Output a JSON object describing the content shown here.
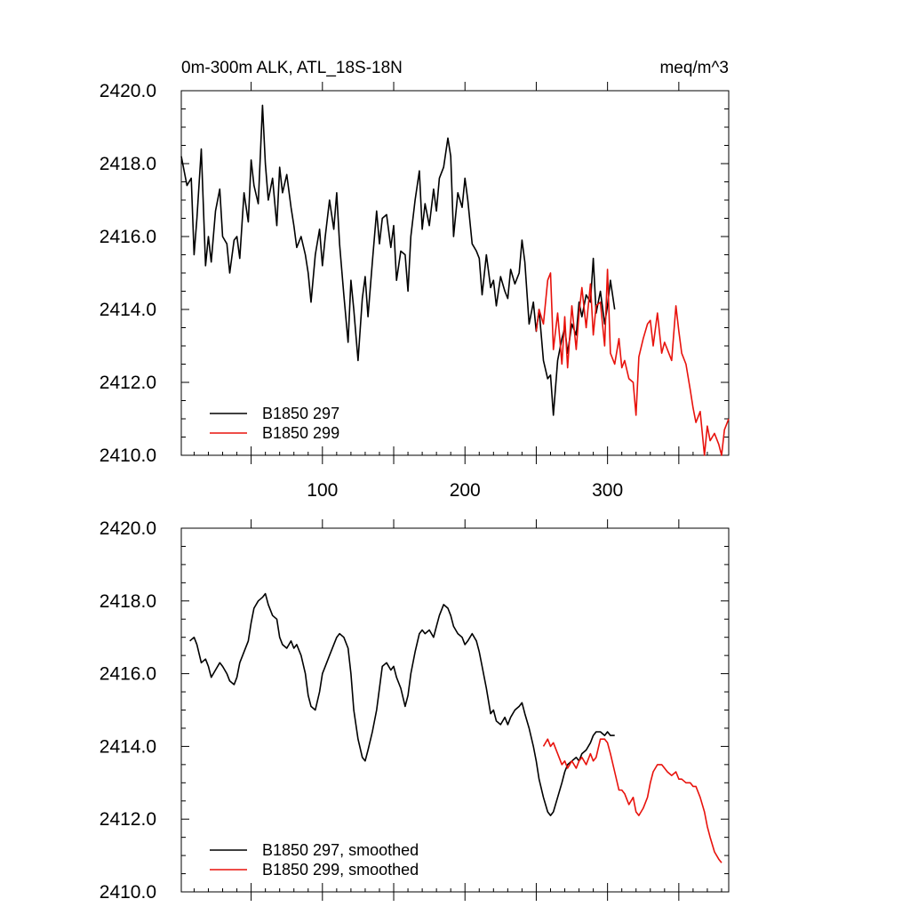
{
  "chart_data": [
    {
      "type": "line",
      "title": "0m-300m ALK, ATL_18S-18N",
      "units": "meq/m^3",
      "xlim": [
        1,
        385
      ],
      "ylim": [
        2410,
        2420
      ],
      "y_ticks": [
        "2410.0",
        "2412.0",
        "2414.0",
        "2416.0",
        "2418.0",
        "2420.0"
      ],
      "x_ticks": [
        "100",
        "200",
        "300"
      ],
      "legend_position": "bottom-left",
      "grid": false,
      "series": [
        {
          "name": "B1850 297",
          "color": "#000000",
          "x": [
            1,
            5,
            8,
            10,
            12,
            15,
            18,
            20,
            22,
            25,
            28,
            30,
            33,
            35,
            38,
            40,
            42,
            45,
            48,
            50,
            52,
            55,
            58,
            60,
            62,
            65,
            68,
            70,
            72,
            75,
            78,
            80,
            82,
            85,
            88,
            90,
            92,
            95,
            98,
            100,
            102,
            105,
            108,
            110,
            112,
            115,
            118,
            120,
            122,
            125,
            128,
            130,
            132,
            135,
            138,
            140,
            142,
            145,
            148,
            150,
            152,
            155,
            158,
            160,
            162,
            165,
            168,
            170,
            172,
            175,
            178,
            180,
            182,
            185,
            188,
            190,
            192,
            195,
            198,
            200,
            202,
            205,
            208,
            210,
            212,
            215,
            218,
            220,
            222,
            225,
            228,
            230,
            232,
            235,
            238,
            240,
            242,
            245,
            248,
            250,
            252,
            255,
            258,
            260,
            262,
            265,
            268,
            270,
            272,
            275,
            278,
            280,
            282,
            285,
            288,
            290,
            292,
            295,
            298,
            300,
            302,
            305
          ],
          "y": [
            2418.2,
            2417.4,
            2417.6,
            2415.5,
            2416.5,
            2418.4,
            2415.2,
            2416.0,
            2415.3,
            2416.7,
            2417.3,
            2416.0,
            2415.8,
            2415.0,
            2415.9,
            2416.0,
            2415.4,
            2417.2,
            2416.4,
            2418.1,
            2417.4,
            2416.9,
            2419.6,
            2418.0,
            2417.0,
            2417.6,
            2416.3,
            2417.9,
            2417.2,
            2417.7,
            2416.8,
            2416.3,
            2415.7,
            2416.0,
            2415.5,
            2415.0,
            2414.2,
            2415.5,
            2416.2,
            2415.2,
            2416.0,
            2417.0,
            2416.2,
            2417.2,
            2415.8,
            2414.4,
            2413.1,
            2414.8,
            2414.0,
            2412.6,
            2414.3,
            2414.9,
            2413.8,
            2415.3,
            2416.7,
            2415.8,
            2416.5,
            2416.6,
            2415.7,
            2416.3,
            2414.8,
            2415.6,
            2415.5,
            2414.5,
            2416.0,
            2417.0,
            2417.8,
            2416.2,
            2416.9,
            2416.3,
            2417.3,
            2416.7,
            2417.6,
            2417.9,
            2418.7,
            2418.2,
            2416.0,
            2417.2,
            2416.8,
            2417.6,
            2417.0,
            2415.8,
            2415.6,
            2415.4,
            2414.4,
            2415.5,
            2414.6,
            2414.8,
            2414.1,
            2414.9,
            2414.5,
            2414.3,
            2415.1,
            2414.7,
            2415.0,
            2415.9,
            2415.3,
            2413.6,
            2414.2,
            2413.4,
            2414.0,
            2412.6,
            2412.1,
            2412.2,
            2411.1,
            2412.6,
            2413.2,
            2413.5,
            2412.8,
            2413.6,
            2413.3,
            2414.2,
            2413.8,
            2414.4,
            2414.2,
            2415.4,
            2413.9,
            2414.5,
            2413.6,
            2414.1,
            2414.8,
            2414.0
          ]
        },
        {
          "name": "B1850 299",
          "color": "#e8120c",
          "x": [
            250,
            252,
            255,
            258,
            260,
            262,
            265,
            268,
            270,
            272,
            275,
            278,
            280,
            282,
            285,
            288,
            290,
            292,
            295,
            298,
            300,
            302,
            305,
            308,
            310,
            312,
            315,
            318,
            320,
            322,
            325,
            328,
            330,
            332,
            335,
            338,
            340,
            342,
            345,
            348,
            350,
            352,
            355,
            358,
            360,
            362,
            365,
            368,
            370,
            372,
            375,
            378,
            380,
            382,
            385
          ],
          "y": [
            2413.4,
            2414.0,
            2413.6,
            2414.8,
            2415.0,
            2412.9,
            2413.9,
            2412.5,
            2413.8,
            2412.4,
            2414.1,
            2412.9,
            2413.9,
            2414.6,
            2413.5,
            2414.7,
            2413.3,
            2414.1,
            2414.2,
            2413.0,
            2415.1,
            2412.8,
            2412.5,
            2413.2,
            2412.4,
            2412.6,
            2412.1,
            2412.0,
            2411.1,
            2412.7,
            2413.2,
            2413.6,
            2413.7,
            2413.0,
            2413.9,
            2412.8,
            2413.1,
            2412.9,
            2412.6,
            2414.1,
            2413.4,
            2412.8,
            2412.5,
            2411.8,
            2411.3,
            2410.9,
            2411.2,
            2410.0,
            2410.8,
            2410.4,
            2410.6,
            2410.3,
            2410.0,
            2410.7,
            2411.0
          ]
        }
      ]
    },
    {
      "type": "line",
      "title": "",
      "xlim": [
        1,
        385
      ],
      "ylim": [
        2410,
        2420
      ],
      "y_ticks": [
        "2410.0",
        "2412.0",
        "2414.0",
        "2416.0",
        "2418.0",
        "2420.0"
      ],
      "legend_position": "bottom-left",
      "grid": false,
      "series": [
        {
          "name": "B1850 297, smoothed",
          "color": "#000000",
          "x": [
            7,
            10,
            12,
            15,
            18,
            20,
            22,
            25,
            28,
            30,
            33,
            35,
            38,
            40,
            42,
            45,
            48,
            50,
            52,
            55,
            58,
            60,
            62,
            65,
            68,
            70,
            72,
            75,
            78,
            80,
            82,
            85,
            88,
            90,
            92,
            95,
            98,
            100,
            102,
            105,
            108,
            110,
            112,
            115,
            118,
            120,
            122,
            125,
            128,
            130,
            132,
            135,
            138,
            140,
            142,
            145,
            148,
            150,
            152,
            155,
            158,
            160,
            162,
            165,
            168,
            170,
            172,
            175,
            178,
            180,
            182,
            185,
            188,
            190,
            192,
            195,
            198,
            200,
            202,
            205,
            208,
            210,
            212,
            215,
            218,
            220,
            222,
            225,
            228,
            230,
            232,
            235,
            238,
            240,
            242,
            245,
            248,
            250,
            252,
            255,
            258,
            260,
            262,
            265,
            268,
            270,
            272,
            275,
            278,
            280,
            282,
            285,
            288,
            290,
            292,
            295,
            298,
            300,
            302,
            305
          ],
          "y": [
            2416.9,
            2417.0,
            2416.8,
            2416.3,
            2416.4,
            2416.2,
            2415.9,
            2416.1,
            2416.3,
            2416.2,
            2416.0,
            2415.8,
            2415.7,
            2415.9,
            2416.3,
            2416.6,
            2416.9,
            2417.4,
            2417.8,
            2418.0,
            2418.1,
            2418.2,
            2417.9,
            2417.6,
            2417.5,
            2417.0,
            2416.8,
            2416.7,
            2416.9,
            2416.7,
            2416.8,
            2416.5,
            2416.0,
            2415.4,
            2415.1,
            2415.0,
            2415.5,
            2416.0,
            2416.2,
            2416.5,
            2416.8,
            2417.0,
            2417.1,
            2417.0,
            2416.7,
            2416.0,
            2415.0,
            2414.2,
            2413.7,
            2413.6,
            2413.9,
            2414.4,
            2415.0,
            2415.6,
            2416.2,
            2416.3,
            2416.1,
            2416.2,
            2415.9,
            2415.6,
            2415.1,
            2415.4,
            2416.0,
            2416.6,
            2417.1,
            2417.2,
            2417.1,
            2417.2,
            2417.0,
            2417.3,
            2417.6,
            2417.9,
            2417.8,
            2417.6,
            2417.3,
            2417.1,
            2417.0,
            2416.8,
            2416.9,
            2417.1,
            2416.9,
            2416.6,
            2416.2,
            2415.6,
            2414.9,
            2415.0,
            2414.7,
            2414.6,
            2414.8,
            2414.6,
            2414.8,
            2415.0,
            2415.1,
            2415.2,
            2414.9,
            2414.5,
            2414.0,
            2413.6,
            2413.1,
            2412.6,
            2412.2,
            2412.1,
            2412.2,
            2412.6,
            2413.0,
            2413.3,
            2413.5,
            2413.6,
            2413.7,
            2413.6,
            2413.8,
            2413.9,
            2414.1,
            2414.3,
            2414.4,
            2414.4,
            2414.3,
            2414.4,
            2414.3,
            2414.3
          ]
        },
        {
          "name": "B1850 299, smoothed",
          "color": "#e8120c",
          "x": [
            255,
            258,
            260,
            262,
            265,
            268,
            270,
            272,
            275,
            278,
            280,
            282,
            285,
            288,
            290,
            292,
            295,
            298,
            300,
            302,
            305,
            308,
            310,
            312,
            315,
            318,
            320,
            322,
            325,
            328,
            330,
            332,
            335,
            338,
            340,
            342,
            345,
            348,
            350,
            352,
            355,
            358,
            360,
            362,
            365,
            368,
            370,
            372,
            375,
            378,
            380
          ],
          "y": [
            2414.0,
            2414.2,
            2414.0,
            2414.1,
            2413.8,
            2413.5,
            2413.6,
            2413.4,
            2413.6,
            2413.4,
            2413.6,
            2413.7,
            2413.5,
            2413.8,
            2413.6,
            2413.7,
            2414.2,
            2414.2,
            2414.1,
            2413.8,
            2413.3,
            2412.8,
            2412.8,
            2412.7,
            2412.4,
            2412.6,
            2412.2,
            2412.1,
            2412.3,
            2412.6,
            2413.0,
            2413.3,
            2413.5,
            2413.5,
            2413.4,
            2413.3,
            2413.2,
            2413.3,
            2413.1,
            2413.1,
            2413.0,
            2413.0,
            2412.9,
            2412.9,
            2412.6,
            2412.2,
            2411.8,
            2411.5,
            2411.1,
            2410.9,
            2410.8
          ]
        }
      ]
    }
  ]
}
